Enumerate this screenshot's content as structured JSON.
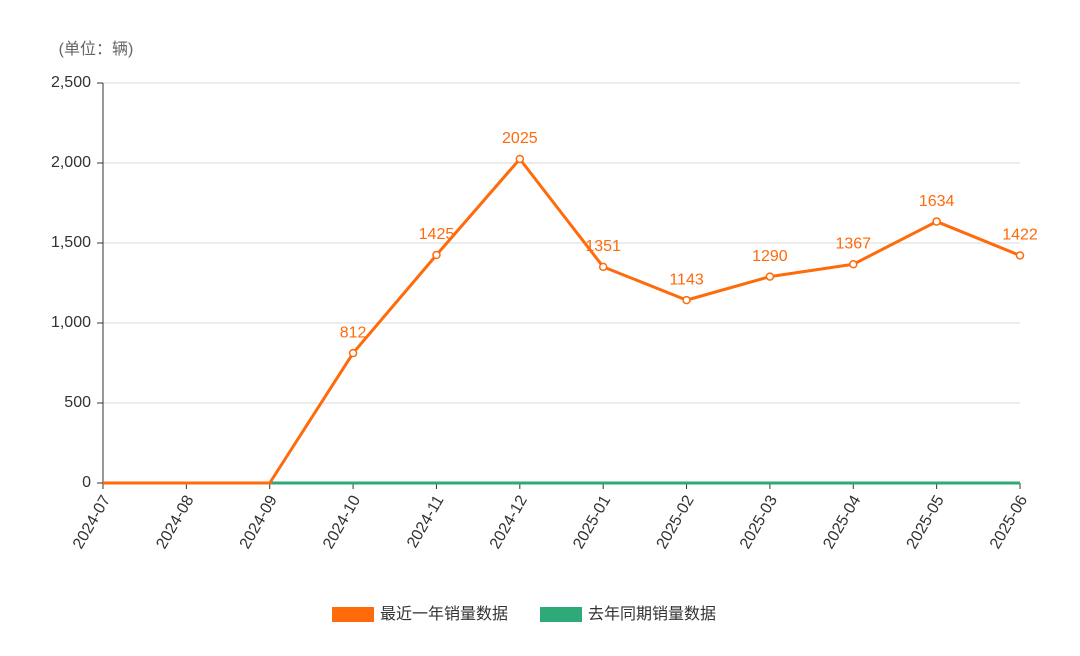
{
  "chart_data": {
    "type": "line",
    "y_unit_label": "(单位：辆)",
    "categories": [
      "2024-07",
      "2024-08",
      "2024-09",
      "2024-10",
      "2024-11",
      "2024-12",
      "2025-01",
      "2025-02",
      "2025-03",
      "2025-04",
      "2025-05",
      "2025-06"
    ],
    "series": [
      {
        "name": "最近一年销量数据",
        "color": "#ff6a0a",
        "values": [
          0,
          0,
          0,
          812,
          1425,
          2025,
          1351,
          1143,
          1290,
          1367,
          1634,
          1422
        ]
      },
      {
        "name": "去年同期销量数据",
        "color": "#2eaa78",
        "values": [
          0,
          0,
          0,
          0,
          0,
          0,
          0,
          0,
          0,
          0,
          0,
          0
        ]
      }
    ],
    "ylim": [
      0,
      2500
    ],
    "yticks": [
      0,
      500,
      {
        "value": 1000,
        "label": "1,000"
      },
      {
        "value": 1500,
        "label": "1,500"
      },
      {
        "value": 2000,
        "label": "2,000"
      },
      {
        "value": 2500,
        "label": "2,500"
      }
    ],
    "grid": true,
    "legend": "bottom"
  }
}
